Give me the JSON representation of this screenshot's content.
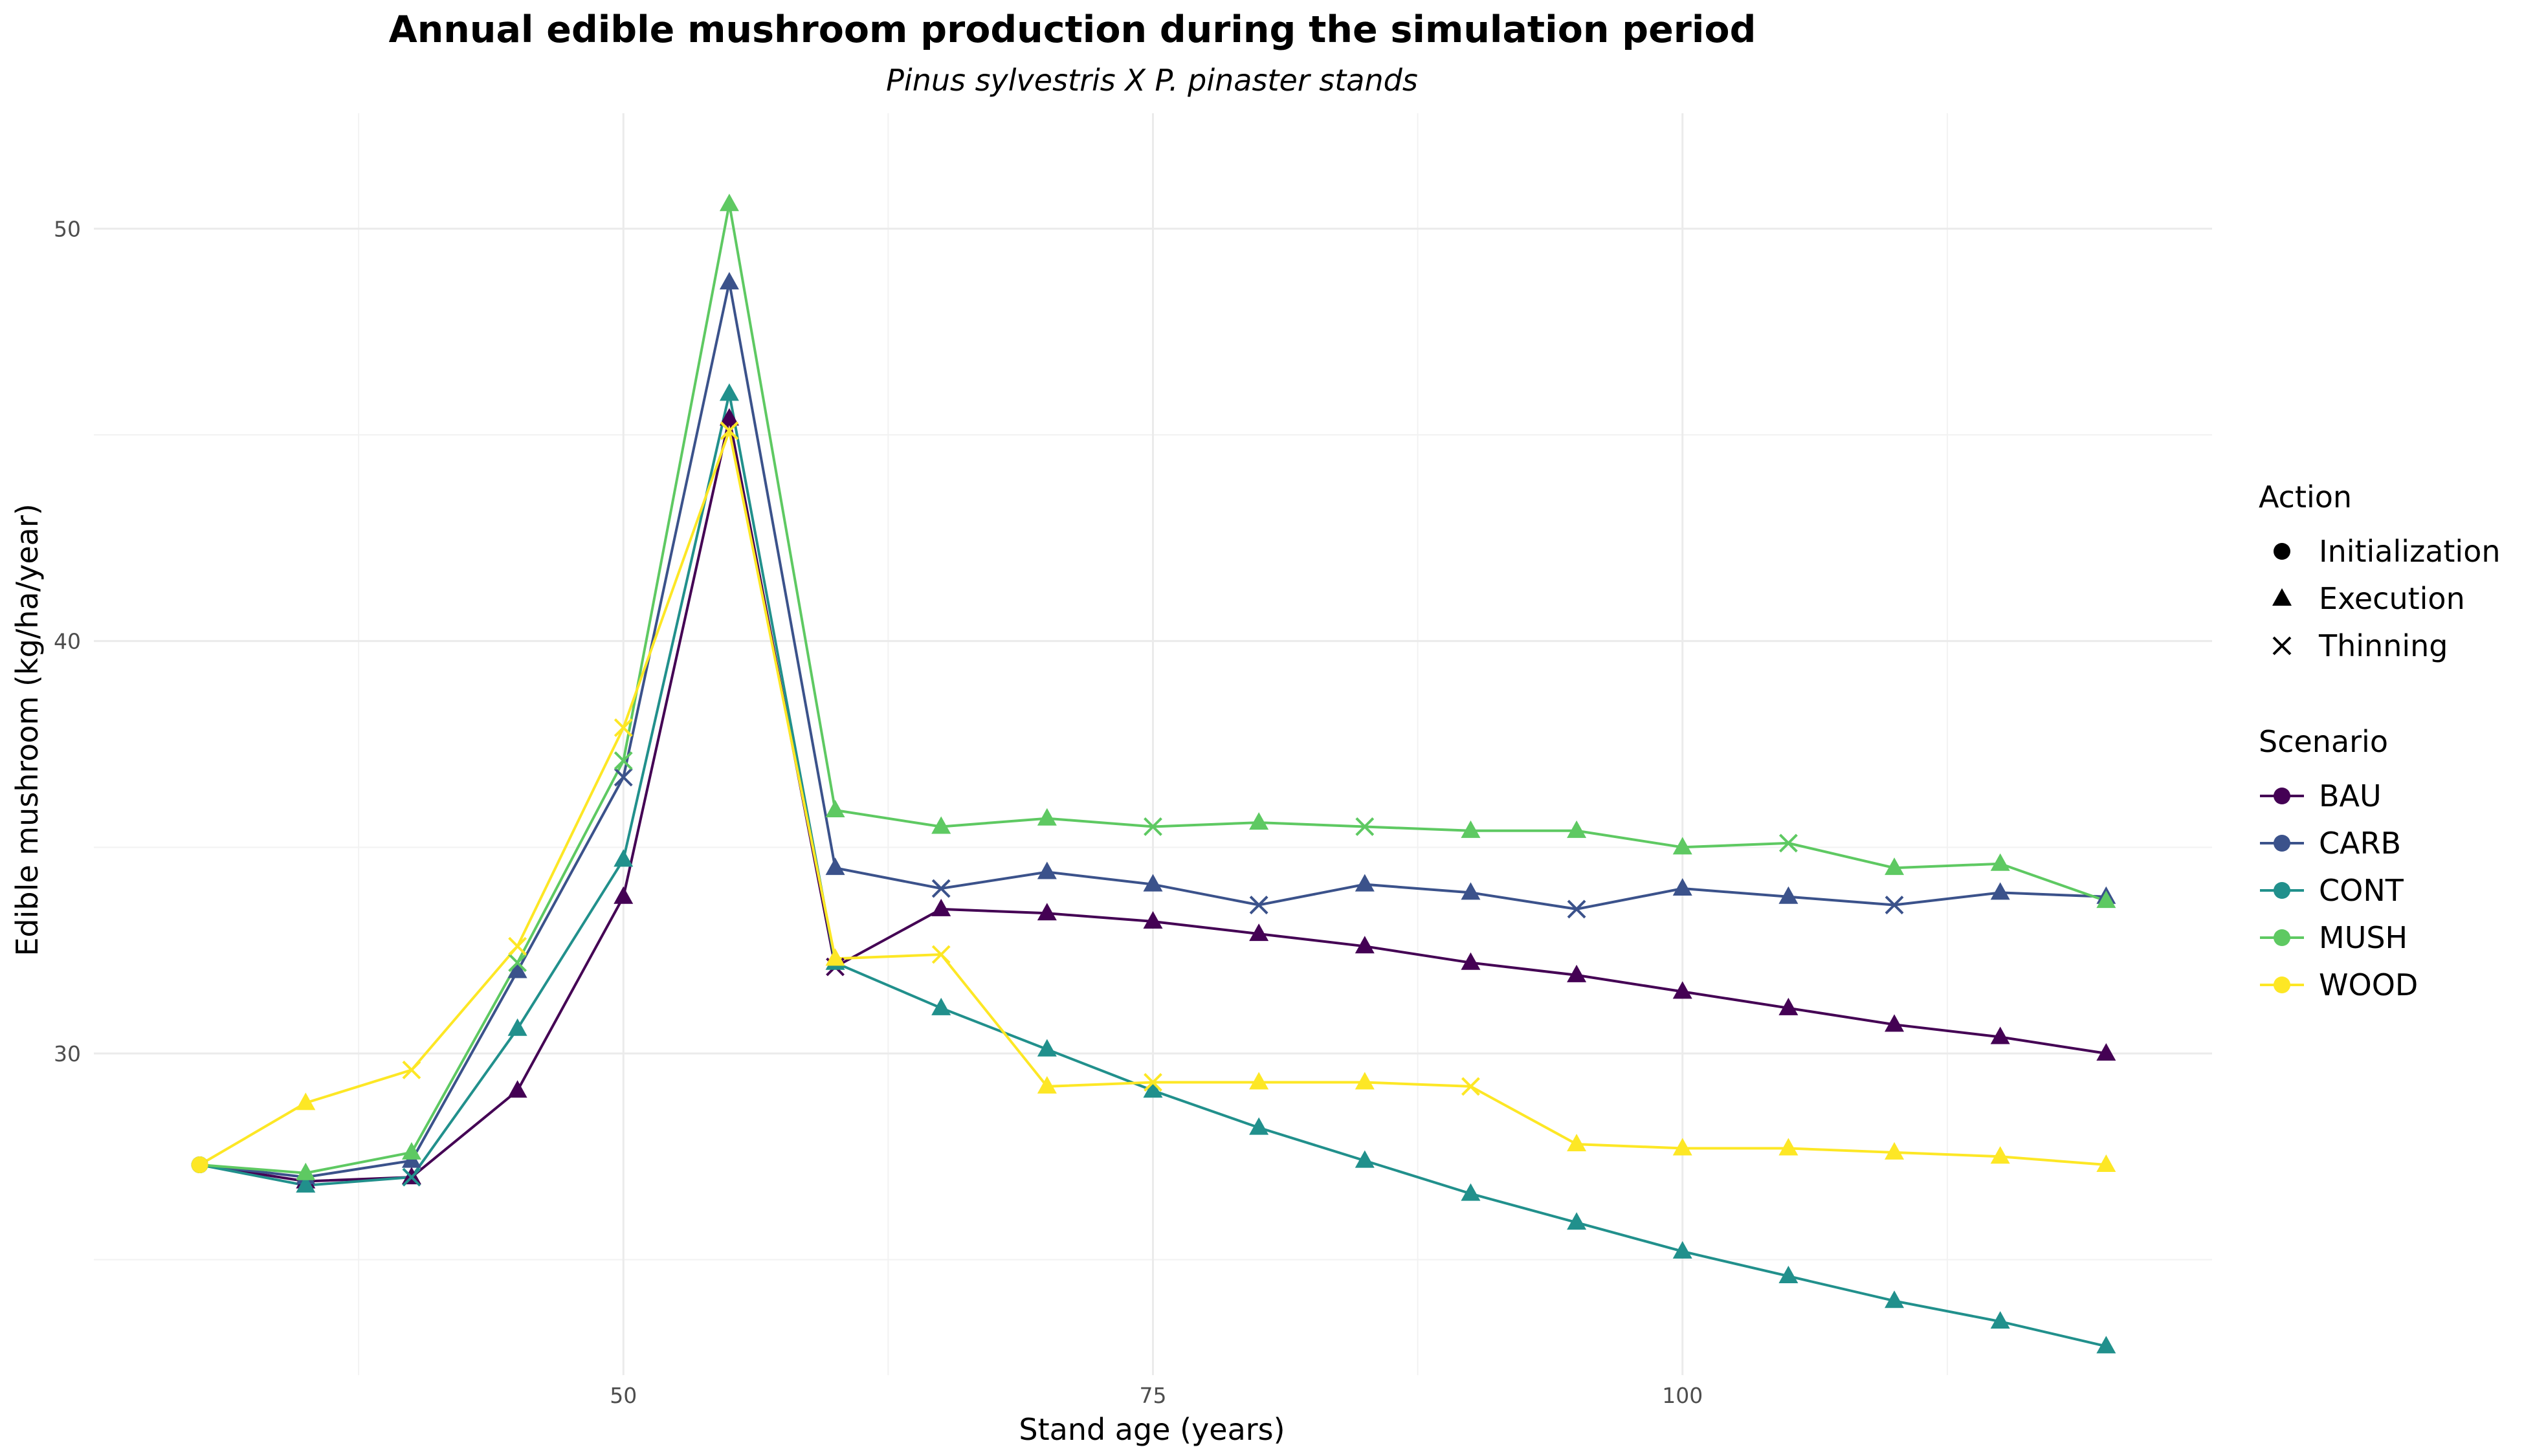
{
  "chart_data": {
    "type": "line",
    "title": "Annual edible mushroom production during the simulation period",
    "subtitle": "Pinus sylvestris X P. pinaster stands",
    "xlabel": "Stand age (years)",
    "ylabel": "Edible mushroom (kg/ha/year)",
    "xlim": [
      25,
      125
    ],
    "ylim": [
      22.2,
      52.8
    ],
    "x_ticks": [
      50,
      75,
      100
    ],
    "y_ticks": [
      30,
      40,
      50
    ],
    "grid": true,
    "legend_placement": "right",
    "x": [
      30,
      35,
      40,
      45,
      50,
      55,
      60,
      65,
      70,
      75,
      80,
      85,
      90,
      95,
      100,
      105,
      110,
      115,
      120
    ],
    "series": [
      {
        "name": "BAU",
        "color": "#440154",
        "values": [
          27.3,
          26.9,
          27.0,
          29.1,
          33.8,
          45.4,
          32.1,
          33.5,
          33.4,
          33.2,
          32.9,
          32.6,
          32.2,
          31.9,
          31.5,
          31.1,
          30.7,
          30.4,
          30.0
        ],
        "actions": [
          "Initialization",
          "Execution",
          "Execution",
          "Execution",
          "Execution",
          "Execution",
          "Thinning",
          "Execution",
          "Execution",
          "Execution",
          "Execution",
          "Execution",
          "Execution",
          "Execution",
          "Execution",
          "Execution",
          "Execution",
          "Execution",
          "Execution"
        ]
      },
      {
        "name": "CARB",
        "color": "#3b528b",
        "values": [
          27.3,
          27.0,
          27.4,
          32.0,
          36.7,
          48.7,
          34.5,
          34.0,
          34.4,
          34.1,
          33.6,
          34.1,
          33.9,
          33.5,
          34.0,
          33.8,
          33.6,
          33.9,
          33.8
        ],
        "actions": [
          "Initialization",
          "Execution",
          "Execution",
          "Execution",
          "Thinning",
          "Execution",
          "Execution",
          "Thinning",
          "Execution",
          "Execution",
          "Thinning",
          "Execution",
          "Execution",
          "Thinning",
          "Execution",
          "Execution",
          "Thinning",
          "Execution",
          "Execution"
        ]
      },
      {
        "name": "CONT",
        "color": "#21908c",
        "values": [
          27.3,
          26.8,
          27.0,
          30.6,
          34.7,
          46.0,
          32.2,
          31.1,
          30.1,
          29.1,
          28.2,
          27.4,
          26.6,
          25.9,
          25.2,
          24.6,
          24.0,
          23.5,
          22.9
        ],
        "actions": [
          "Initialization",
          "Execution",
          "Thinning",
          "Execution",
          "Execution",
          "Execution",
          "Execution",
          "Execution",
          "Execution",
          "Execution",
          "Execution",
          "Execution",
          "Execution",
          "Execution",
          "Execution",
          "Execution",
          "Execution",
          "Execution",
          "Execution"
        ]
      },
      {
        "name": "MUSH",
        "color": "#5ec962",
        "values": [
          27.3,
          27.1,
          27.6,
          32.2,
          37.1,
          50.6,
          35.9,
          35.5,
          35.7,
          35.5,
          35.6,
          35.5,
          35.4,
          35.4,
          35.0,
          35.1,
          34.5,
          34.6,
          33.7
        ],
        "actions": [
          "Initialization",
          "Execution",
          "Execution",
          "Thinning",
          "Thinning",
          "Execution",
          "Execution",
          "Execution",
          "Execution",
          "Thinning",
          "Execution",
          "Thinning",
          "Execution",
          "Execution",
          "Execution",
          "Thinning",
          "Execution",
          "Execution",
          "Execution"
        ]
      },
      {
        "name": "WOOD",
        "color": "#fde725",
        "values": [
          27.3,
          28.8,
          29.6,
          32.6,
          37.9,
          45.1,
          32.3,
          32.4,
          29.2,
          29.3,
          29.3,
          29.3,
          29.2,
          27.8,
          27.7,
          27.7,
          27.6,
          27.5,
          27.3
        ],
        "actions": [
          "Initialization",
          "Execution",
          "Thinning",
          "Thinning",
          "Thinning",
          "Thinning",
          "Execution",
          "Thinning",
          "Execution",
          "Thinning",
          "Execution",
          "Execution",
          "Thinning",
          "Execution",
          "Execution",
          "Execution",
          "Execution",
          "Execution",
          "Execution"
        ]
      }
    ],
    "legend": {
      "action_title": "Action",
      "actions": [
        {
          "label": "Initialization",
          "shape": "circle"
        },
        {
          "label": "Execution",
          "shape": "triangle"
        },
        {
          "label": "Thinning",
          "shape": "cross"
        }
      ],
      "scenario_title": "Scenario"
    }
  }
}
